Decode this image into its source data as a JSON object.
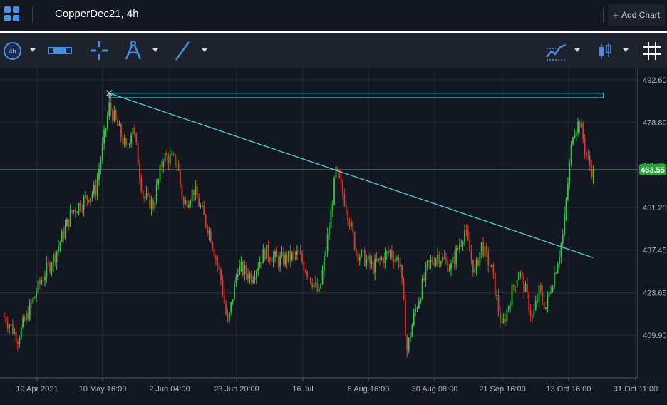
{
  "header": {
    "tab_title": "CopperDec21, 4h",
    "add_chart_label": "Add Chart",
    "add_chart_icon": "plus-icon",
    "apps_icon": "grid-icon"
  },
  "toolbar": {
    "interval_label": "4h",
    "tools": [
      "ruler-icon",
      "crosshair-icon",
      "fibonacci-compass-icon",
      "trend-line-icon"
    ],
    "right_tools": [
      "indicators-icon",
      "candlestick-icon",
      "grid-toggle-icon"
    ]
  },
  "colors": {
    "background": "#131722",
    "up": "#2ecc40",
    "down": "#e03a2f",
    "annotation": "#4fd1d9",
    "price_line": "#2e8b3a",
    "price_badge": "#26a63a"
  },
  "chart_data": {
    "type": "candlestick",
    "symbol": "CopperDec21",
    "interval": "4h",
    "y_ticks": [
      "492.60",
      "478.80",
      "465.05",
      "451.25",
      "437.45",
      "423.65",
      "409.90"
    ],
    "y_tick_values": [
      492.6,
      478.8,
      465.05,
      451.25,
      437.45,
      423.65,
      409.9
    ],
    "x_ticks": [
      "19 Apr 2021",
      "10 May 16:00",
      "2 Jun 04:00",
      "23 Jun 20:00",
      "16 Jul",
      "6 Aug 16:00",
      "30 Aug 08:00",
      "21 Sep 16:00",
      "13 Oct 16:00",
      "31 Oct 11:00"
    ],
    "ylim": [
      397.5,
      495.5
    ],
    "current_price": 463.55,
    "current_price_label": "463.55",
    "anchors": [
      [
        0,
        416
      ],
      [
        4,
        409
      ],
      [
        11,
        428
      ],
      [
        15,
        436
      ],
      [
        20,
        450
      ],
      [
        27,
        457
      ],
      [
        31,
        484
      ],
      [
        33,
        479
      ],
      [
        36,
        470
      ],
      [
        38,
        478
      ],
      [
        41,
        455
      ],
      [
        44,
        452
      ],
      [
        47,
        468
      ],
      [
        51,
        466
      ],
      [
        53,
        452
      ],
      [
        56,
        457
      ],
      [
        61,
        442
      ],
      [
        64,
        428
      ],
      [
        66,
        413
      ],
      [
        69,
        432
      ],
      [
        73,
        429
      ],
      [
        77,
        437
      ],
      [
        81,
        434
      ],
      [
        87,
        436
      ],
      [
        93,
        423
      ],
      [
        96,
        445
      ],
      [
        98,
        463
      ],
      [
        101,
        452
      ],
      [
        104,
        437
      ],
      [
        109,
        432
      ],
      [
        114,
        437
      ],
      [
        117,
        433
      ],
      [
        119,
        405
      ],
      [
        121,
        416
      ],
      [
        125,
        432
      ],
      [
        128,
        436
      ],
      [
        132,
        432
      ],
      [
        136,
        444
      ],
      [
        139,
        430
      ],
      [
        141,
        439
      ],
      [
        144,
        431
      ],
      [
        147,
        412
      ],
      [
        150,
        424
      ],
      [
        152,
        431
      ],
      [
        154,
        424
      ],
      [
        156,
        415
      ],
      [
        158,
        424
      ],
      [
        160,
        419
      ],
      [
        163,
        432
      ],
      [
        165,
        442
      ],
      [
        168,
        476
      ],
      [
        170,
        479
      ],
      [
        172,
        468
      ],
      [
        174,
        462
      ]
    ],
    "annotations": {
      "trend_line": {
        "start": [
          31,
          488.3
        ],
        "end": [
          174,
          435.0
        ]
      },
      "rectangle": {
        "x": [
          31,
          177
        ],
        "y": [
          486.8,
          488.3
        ]
      }
    }
  }
}
